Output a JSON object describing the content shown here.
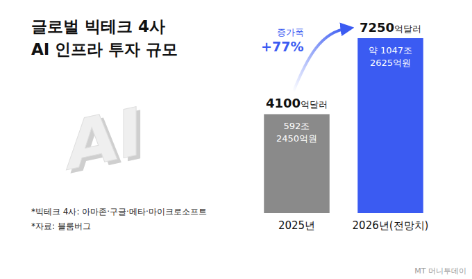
{
  "chart_data": {
    "type": "bar",
    "title": [
      "글로벌 빅테크 4사",
      "AI 인프라 투자 규모"
    ],
    "categories": [
      "2025년",
      "2026년(전망치)"
    ],
    "values": [
      4100,
      7250
    ],
    "value_labels": [
      "4100억달러",
      "7250억달러"
    ],
    "colors": [
      "#8a8a8a",
      "#3b5bf2"
    ],
    "ylim": [
      0,
      7250
    ],
    "tick_labels": "x",
    "data_labels": true,
    "inner_labels": [
      [
        "592조",
        "2450억원"
      ],
      [
        "약 1047조",
        "2625억원"
      ]
    ],
    "annotation": {
      "label": "증가폭",
      "text": "+77%"
    },
    "notes": [
      "*빅테크 4사: 아마존·구글·메타·마이크로소프트",
      "*자료: 블룸버그"
    ],
    "graphic_text": "AI",
    "source_logo": "MT 머니투데이"
  }
}
